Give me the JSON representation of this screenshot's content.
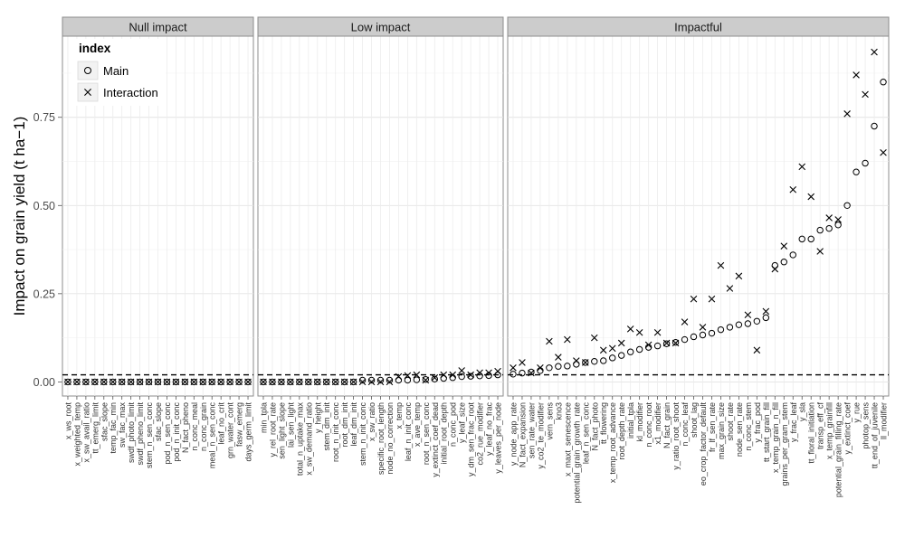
{
  "chart_data": {
    "type": "scatter",
    "ylabel": "Impact on grain yield (t ha−1)",
    "xlabel": "",
    "ylim": [
      -0.04,
      0.98
    ],
    "yticks": [
      0.0,
      0.25,
      0.5,
      0.75
    ],
    "ytick_labels": [
      "0.00",
      "0.25",
      "0.50",
      "0.75"
    ],
    "grid": true,
    "threshold_line": 0.02,
    "legend": {
      "title": "index",
      "placement": "top-left",
      "entries": [
        {
          "label": "Main",
          "marker": "circle"
        },
        {
          "label": "Interaction",
          "marker": "cross"
        }
      ]
    },
    "series_names": [
      "Main",
      "Interaction"
    ],
    "panels": [
      {
        "title": "Null impact",
        "categories": [
          "x_ws_root",
          "x_weighted_temp",
          "x_sw_avail_ratio",
          "tt_emerg_limit",
          "sfac_slope",
          "temp_fac_min",
          "sw_fac_max",
          "swdf_photo_limit",
          "swdf_pheno_limit",
          "stem_n_sen_conc",
          "sfac_slope",
          "pod_n_sen_conc",
          "pod_n_init_conc",
          "N_fact_pheno",
          "n_conc_meal",
          "n_conc_grain",
          "meal_n_sen_conc",
          "leaf_no_crit",
          "grn_water_cont",
          "fasw_emerg",
          "days_germ_limit"
        ],
        "main": [
          0,
          0,
          0,
          0,
          0,
          0,
          0,
          0,
          0,
          0,
          0,
          0,
          0,
          0,
          0,
          0,
          0,
          0,
          0,
          0,
          0
        ],
        "interaction": [
          0,
          0,
          0,
          0,
          0,
          0,
          0,
          0,
          0,
          0,
          0,
          0,
          0,
          0,
          0,
          0,
          0,
          0,
          0,
          0,
          0
        ]
      },
      {
        "title": "Low impact",
        "categories": [
          "min_tpla",
          "y_rel_root_rate",
          "sen_light_slope",
          "lai_sen_light",
          "total_n_uptake_max",
          "x_sw_demand_ratio",
          "y_height",
          "stem_dm_init",
          "root_n_init_conc",
          "root_dm_init",
          "leaf_dm_init",
          "stem_n_init_conc",
          "x_sw_ratio",
          "specific_root_length",
          "node_no_correction",
          "x_temp",
          "leaf_n_init_conc",
          "x_ave_temp",
          "root_n_sen_conc",
          "y_extinct_coef_dead",
          "initial_root_depth",
          "n_conc_pod",
          "y_leaf_size",
          "y_dm_sen_frac_root",
          "co2_rue_modifier",
          "y_leaf_no_frac",
          "y_leaves_per_node"
        ],
        "main": [
          0,
          0,
          0,
          0,
          0,
          0,
          0,
          0,
          0,
          0,
          0,
          0.005,
          0.005,
          0.005,
          0.005,
          0.005,
          0.005,
          0.006,
          0.007,
          0.008,
          0.01,
          0.012,
          0.015,
          0.016,
          0.017,
          0.018,
          0.02
        ],
        "interaction": [
          0,
          0,
          0,
          0,
          0,
          0,
          0,
          0,
          0,
          0,
          0,
          0,
          0,
          0,
          0,
          0.015,
          0.018,
          0.02,
          0.005,
          0.012,
          0.02,
          0.02,
          0.032,
          0.02,
          0.026,
          0.026,
          0.03
        ]
      },
      {
        "title": "Impactful",
        "categories": [
          "y_node_app_rate",
          "N_fact_expansion",
          "sen_rate_water",
          "y_co2_te_modifier",
          "vern_sens",
          "kno3",
          "x_maxt_senescence",
          "potential_grain_growth_rate",
          "leaf_n_sen_conc",
          "N_fact_photo",
          "tt_flowering",
          "x_temp_root_advance",
          "root_depth_rate",
          "initial_tpla",
          "kl_modifier",
          "n_conc_root",
          "x1_modifier",
          "N_fact_grain",
          "y_ratio_root_shoot",
          "n_conc_leaf",
          "shoot_lag",
          "eo_crop_factor_default",
          "fr_lf_sen_rate",
          "max_grain_size",
          "shoot_rate",
          "node_sen_rate",
          "n_conc_stem",
          "y_frac_pod",
          "tt_start_grain_fill",
          "x_temp_grain_n_fill",
          "grains_per_gram_stem",
          "y_frac_leaf",
          "y_sla",
          "tt_floral_initiation",
          "transp_eff_cf",
          "x_temp_grainfill",
          "potential_grain_filling_rate",
          "y_extinct_coef",
          "y_rue",
          "photop_sens",
          "tt_end_of_juvenile",
          "ll_modifier"
        ],
        "main": [
          0.022,
          0.025,
          0.028,
          0.032,
          0.04,
          0.044,
          0.045,
          0.05,
          0.055,
          0.058,
          0.06,
          0.068,
          0.075,
          0.085,
          0.092,
          0.098,
          0.102,
          0.108,
          0.112,
          0.12,
          0.128,
          0.133,
          0.138,
          0.148,
          0.155,
          0.162,
          0.165,
          0.172,
          0.182,
          0.33,
          0.34,
          0.36,
          0.405,
          0.405,
          0.43,
          0.435,
          0.445,
          0.5,
          0.595,
          0.62,
          0.725,
          0.85
        ],
        "interaction": [
          0.04,
          0.055,
          0.025,
          0.04,
          0.115,
          0.07,
          0.12,
          0.06,
          0.055,
          0.125,
          0.09,
          0.095,
          0.11,
          0.15,
          0.14,
          0.105,
          0.14,
          0.11,
          0.11,
          0.17,
          0.235,
          0.155,
          0.235,
          0.33,
          0.265,
          0.3,
          0.19,
          0.09,
          0.2,
          0.32,
          0.385,
          0.545,
          0.61,
          0.525,
          0.37,
          0.465,
          0.46,
          0.76,
          0.87,
          0.815,
          0.935,
          0.65
        ]
      }
    ]
  }
}
